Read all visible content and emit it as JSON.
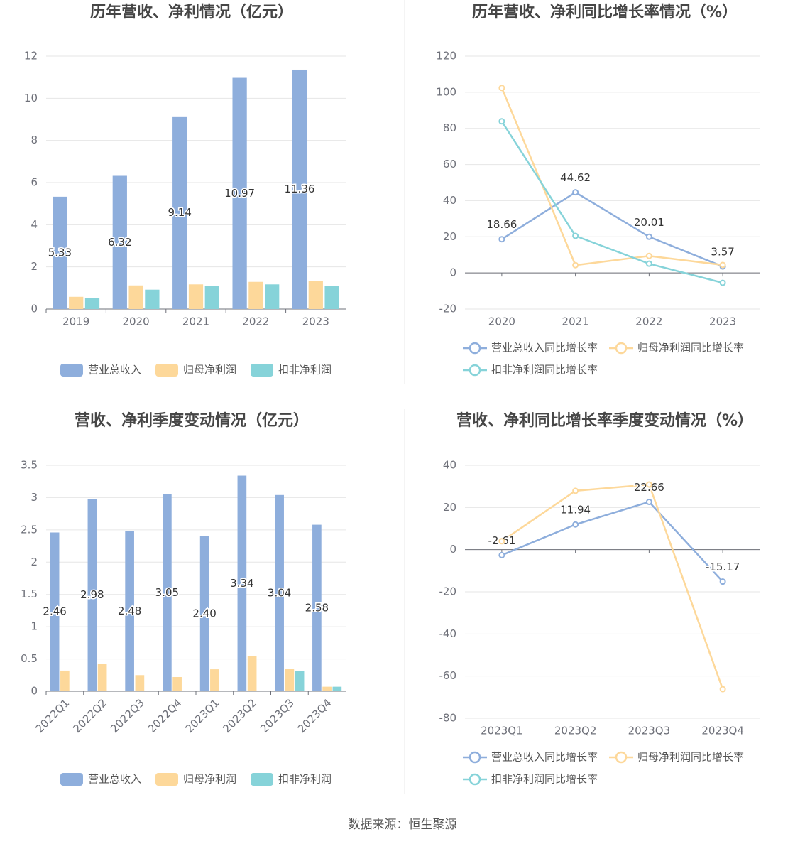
{
  "chart_data": [
    {
      "type": "bar",
      "title": "历年营收、净利情况（亿元）",
      "categories": [
        "2019",
        "2020",
        "2021",
        "2022",
        "2023"
      ],
      "series": [
        {
          "name": "营业总收入",
          "color": "#8eaedc",
          "values": [
            5.33,
            6.32,
            9.14,
            10.97,
            11.36
          ],
          "value_labels": [
            "5.33",
            "6.32",
            "9.14",
            "10.97",
            "11.36"
          ]
        },
        {
          "name": "归母净利润",
          "color": "#fdd89a",
          "values": [
            0.58,
            1.12,
            1.17,
            1.29,
            1.33
          ]
        },
        {
          "name": "扣非净利润",
          "color": "#86d3d9",
          "values": [
            0.52,
            0.92,
            1.1,
            1.17,
            1.1
          ]
        }
      ],
      "ylim": [
        0,
        12
      ],
      "yticks": [
        0,
        2,
        4,
        6,
        8,
        10,
        12
      ],
      "grid": true
    },
    {
      "type": "line",
      "title": "历年营收、净利同比增长率情况（%）",
      "categories": [
        "2020",
        "2021",
        "2022",
        "2023"
      ],
      "series": [
        {
          "name": "营业总收入同比增长率",
          "color": "#8eaedc",
          "values": [
            18.66,
            44.62,
            20.01,
            3.57
          ],
          "value_labels": [
            "18.66",
            "44.62",
            "20.01",
            "3.57"
          ]
        },
        {
          "name": "归母净利润同比增长率",
          "color": "#fdd89a",
          "values": [
            102.4,
            4.3,
            9.4,
            4.4
          ]
        },
        {
          "name": "扣非净利润同比增长率",
          "color": "#86d3d9",
          "values": [
            83.9,
            20.5,
            5.1,
            -5.5
          ]
        }
      ],
      "ylim": [
        -20,
        120
      ],
      "yticks": [
        -20,
        0,
        20,
        40,
        60,
        80,
        100,
        120
      ],
      "grid": true
    },
    {
      "type": "bar",
      "title": "营收、净利季度变动情况（亿元）",
      "categories": [
        "2022Q1",
        "2022Q2",
        "2022Q3",
        "2022Q4",
        "2023Q1",
        "2023Q2",
        "2023Q3",
        "2023Q4"
      ],
      "series": [
        {
          "name": "营业总收入",
          "color": "#8eaedc",
          "values": [
            2.46,
            2.98,
            2.48,
            3.05,
            2.4,
            3.34,
            3.04,
            2.58
          ],
          "value_labels": [
            "2.46",
            "2.98",
            "2.48",
            "3.05",
            "2.40",
            "3.34",
            "3.04",
            "2.58"
          ]
        },
        {
          "name": "归母净利润",
          "color": "#fdd89a",
          "values": [
            0.32,
            0.42,
            0.25,
            0.22,
            0.34,
            0.54,
            0.35,
            0.07
          ]
        },
        {
          "name": "扣非净利润",
          "color": "#86d3d9",
          "values": [
            null,
            null,
            null,
            null,
            null,
            null,
            0.31,
            0.07
          ]
        }
      ],
      "ylim": [
        0,
        3.5
      ],
      "yticks": [
        0,
        0.5,
        1,
        1.5,
        2,
        2.5,
        3,
        3.5
      ],
      "grid": true
    },
    {
      "type": "line",
      "title": "营收、净利同比增长率季度变动情况（%）",
      "categories": [
        "2023Q1",
        "2023Q2",
        "2023Q3",
        "2023Q4"
      ],
      "series": [
        {
          "name": "营业总收入同比增长率",
          "color": "#8eaedc",
          "values": [
            -2.61,
            11.94,
            22.66,
            -15.17
          ],
          "value_labels": [
            "-2.61",
            "11.94",
            "22.66",
            "-15.17"
          ]
        },
        {
          "name": "归母净利润同比增长率",
          "color": "#fdd89a",
          "values": [
            4,
            27.9,
            30.9,
            -66.2
          ]
        },
        {
          "name": "扣非净利润同比增长率",
          "color": "#86d3d9",
          "values": [
            null,
            null,
            null,
            null
          ]
        }
      ],
      "ylim": [
        -80,
        40
      ],
      "yticks": [
        -80,
        -60,
        -40,
        -20,
        0,
        20,
        40
      ],
      "grid": true
    }
  ],
  "source": "数据来源：恒生聚源"
}
